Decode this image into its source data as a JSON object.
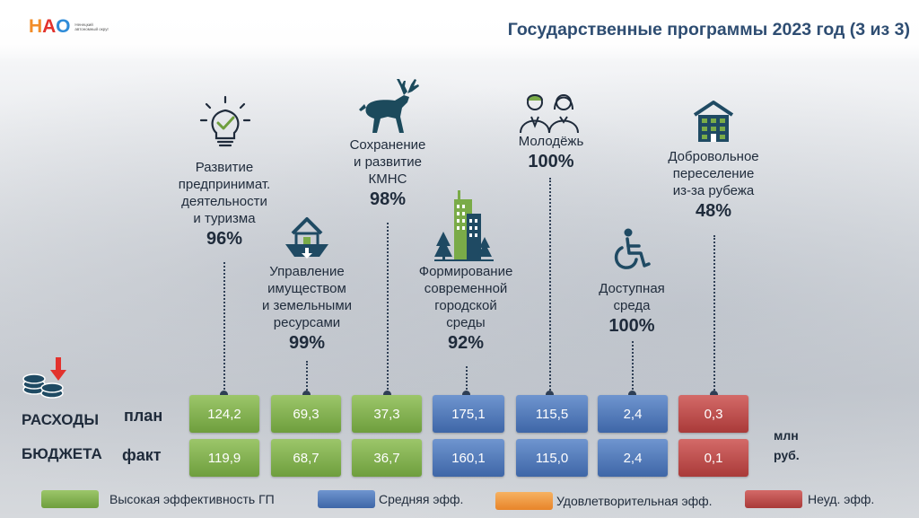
{
  "logo": {
    "l1": "Н",
    "l2": "А",
    "l3": "О",
    "sub": "Ненецкий автономный округ"
  },
  "title": "Государственные программы 2023 год (3 из 3)",
  "programs": [
    {
      "name1": "Развитие",
      "name2": "предпринимат.",
      "name3": "деятельности",
      "name4": "и туризма",
      "pct": "96%",
      "plan": "124,2",
      "fact": "119,9",
      "color": "#7aab48"
    },
    {
      "name1": "Управление",
      "name2": "имуществом",
      "name3": "и земельными",
      "name4": "ресурсами",
      "pct": "99%",
      "plan": "69,3",
      "fact": "68,7",
      "color": "#7aab48"
    },
    {
      "name1": "Сохранение",
      "name2": "и развитие",
      "name3": "КМНС",
      "pct": "98%",
      "plan": "37,3",
      "fact": "36,7",
      "color": "#7aab48"
    },
    {
      "name1": "Формирование",
      "name2": "современной",
      "name3": "городской",
      "name4": "среды",
      "pct": "92%",
      "plan": "175,1",
      "fact": "160,1",
      "color": "#4c74b4"
    },
    {
      "name1": "Молодёжь",
      "pct": "100%",
      "plan": "115,5",
      "fact": "115,0",
      "color": "#4c74b4"
    },
    {
      "name1": "Доступная",
      "name2": "среда",
      "pct": "100%",
      "plan": "2,4",
      "fact": "2,4",
      "color": "#4c74b4"
    },
    {
      "name1": "Добровольное",
      "name2": "переселение",
      "name3": "из-за рубежа",
      "pct": "48%",
      "plan": "0,3",
      "fact": "0,1",
      "color": "#b84746"
    }
  ],
  "labels": {
    "expenses": "РАСХОДЫ",
    "budget": "БЮДЖЕТА",
    "plan": "план",
    "fact": "факт",
    "unit1": "млн",
    "unit2": "руб."
  },
  "legend": [
    {
      "text": "Высокая эффективность ГП",
      "color": "#7aab48"
    },
    {
      "text": "Средняя эфф.",
      "color": "#4c74b4"
    },
    {
      "text": "Удовлетворительная эфф.",
      "color": "#f0993c"
    },
    {
      "text": "Неуд. эфф.",
      "color": "#b84746"
    }
  ]
}
